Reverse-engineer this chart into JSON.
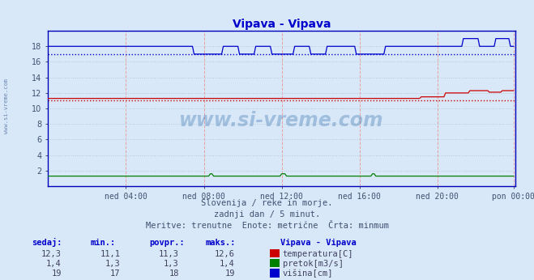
{
  "title": "Vipava - Vipava",
  "background_color": "#d8e8f8",
  "plot_bg_color": "#d8e8f8",
  "ylim": [
    0,
    20
  ],
  "xlim": [
    0,
    288
  ],
  "xtick_labels": [
    "ned 04:00",
    "ned 08:00",
    "ned 12:00",
    "ned 16:00",
    "ned 20:00",
    "pon 00:00"
  ],
  "xtick_positions": [
    48,
    96,
    144,
    192,
    240,
    287
  ],
  "ytick_positions": [
    0,
    2,
    4,
    6,
    8,
    10,
    12,
    14,
    16,
    18,
    20
  ],
  "watermark_text": "www.si-vreme.com",
  "temp_color": "#cc0000",
  "flow_color": "#008000",
  "height_color": "#0000cc",
  "temp_min": 11.1,
  "height_min": 17.0,
  "subtitle_lines": [
    "Slovenija / reke in morje.",
    "zadnji dan / 5 minut.",
    "Meritve: trenutne  Enote: metrične  Črta: minmum"
  ],
  "legend_title": "Vipava - Vipava",
  "legend_items": [
    {
      "label": "temperatura[C]",
      "color": "#cc0000"
    },
    {
      "label": "pretok[m3/s]",
      "color": "#008000"
    },
    {
      "label": "višina[cm]",
      "color": "#0000cc"
    }
  ],
  "stats_headers": [
    "sedaj:",
    "min.:",
    "povpr.:",
    "maks.:"
  ],
  "stats_rows": [
    [
      "12,3",
      "11,1",
      "11,3",
      "12,6"
    ],
    [
      "1,4",
      "1,3",
      "1,3",
      "1,4"
    ],
    [
      "19",
      "17",
      "18",
      "19"
    ]
  ]
}
